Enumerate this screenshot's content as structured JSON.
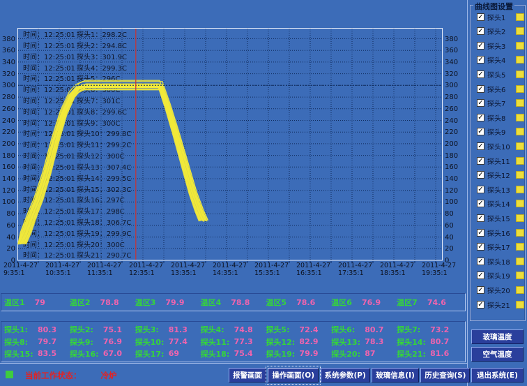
{
  "window": {
    "bg_color": "#3c6cb8",
    "curve_color": "#f2e93a",
    "grid_color": "#0f2a5a",
    "cursor_color": "#c83232",
    "zone_label_color": "#35d53a",
    "value_color": "#ef64ae"
  },
  "chart": {
    "y_ticks": [
      380,
      360,
      340,
      320,
      300,
      280,
      260,
      240,
      220,
      200,
      180,
      160,
      140,
      120,
      100,
      80,
      60,
      40,
      20,
      0
    ],
    "x_date": "2011-4-27",
    "x_times": [
      "9:35:1",
      "10:35:1",
      "11:35:1",
      "12:35:1",
      "13:35:1",
      "14:35:1",
      "15:35:1",
      "16:35:1",
      "17:35:1",
      "18:35:1",
      "19:35:1"
    ],
    "overlay_time": "时间：12:25:01"
  },
  "chart_data": {
    "type": "line",
    "title": "",
    "xlabel": "",
    "ylabel": "",
    "ylim": [
      0,
      400
    ],
    "y_tick_step": 20,
    "x_axis_date": "2011-4-27",
    "x_axis_times": [
      "9:35:1",
      "10:35:1",
      "11:35:1",
      "12:35:1",
      "13:35:1",
      "14:35:1",
      "15:35:1",
      "16:35:1",
      "17:35:1",
      "18:35:1",
      "19:35:1"
    ],
    "grid": "dotted",
    "cursor": {
      "time": "12:25:01",
      "hours_from_axis_start": 2.83
    },
    "series_color": "#f2e93a",
    "base_curve_hours_temp": [
      [
        0.07,
        28
      ],
      [
        0.2,
        48
      ],
      [
        0.35,
        78
      ],
      [
        0.5,
        105
      ],
      [
        0.7,
        150
      ],
      [
        0.9,
        205
      ],
      [
        1.1,
        252
      ],
      [
        1.3,
        283
      ],
      [
        1.45,
        295
      ],
      [
        1.6,
        300
      ],
      [
        3.42,
        300
      ],
      [
        3.6,
        262
      ],
      [
        3.8,
        215
      ],
      [
        4.0,
        165
      ],
      [
        4.2,
        115
      ],
      [
        4.35,
        85
      ],
      [
        4.45,
        68
      ]
    ],
    "series": [
      {
        "name": "探头1",
        "at_cursor": "298.2C",
        "now": "80.3"
      },
      {
        "name": "探头2",
        "at_cursor": "294.8C",
        "now": "75.1"
      },
      {
        "name": "探头3",
        "at_cursor": "301.9C",
        "now": "81.3"
      },
      {
        "name": "探头4",
        "at_cursor": "299.3C",
        "now": "74.8"
      },
      {
        "name": "探头5",
        "at_cursor": "296C",
        "now": "72.4"
      },
      {
        "name": "探头6",
        "at_cursor": "300C",
        "now": "80.7"
      },
      {
        "name": "探头7",
        "at_cursor": "301C",
        "now": "73.2"
      },
      {
        "name": "探头8",
        "at_cursor": "299.6C",
        "now": "79.7"
      },
      {
        "name": "探头9",
        "at_cursor": "300C",
        "now": "76.9"
      },
      {
        "name": "探头10",
        "at_cursor": "299.8C",
        "now": "77.4"
      },
      {
        "name": "探头11",
        "at_cursor": "299.2C",
        "now": "77.3"
      },
      {
        "name": "探头12",
        "at_cursor": "300C",
        "now": "82.9"
      },
      {
        "name": "探头13",
        "at_cursor": "307.4C",
        "now": "78.3"
      },
      {
        "name": "探头14",
        "at_cursor": "299.5C",
        "now": "80.7"
      },
      {
        "name": "探头15",
        "at_cursor": "302.3C",
        "now": "83.5"
      },
      {
        "name": "探头16",
        "at_cursor": "297C",
        "now": "67.0"
      },
      {
        "name": "探头17",
        "at_cursor": "298C",
        "now": "69"
      },
      {
        "name": "探头18",
        "at_cursor": "306.7C",
        "now": "75.4"
      },
      {
        "name": "探头19",
        "at_cursor": "299.9C",
        "now": "79.9"
      },
      {
        "name": "探头20",
        "at_cursor": "300C",
        "now": "87"
      },
      {
        "name": "探头21",
        "at_cursor": "290.7C",
        "now": "81.6"
      }
    ]
  },
  "sidebar": {
    "title": "曲线图设置",
    "checkbox_checked": true,
    "check_glyph": "✓",
    "swatch_color": "#ecdf3c",
    "glass_btn": "玻璃温度",
    "air_btn": "空气温度"
  },
  "zones": [
    {
      "label": "温区1",
      "value": "79"
    },
    {
      "label": "温区2",
      "value": "78.8"
    },
    {
      "label": "温区3",
      "value": "79.9"
    },
    {
      "label": "温区4",
      "value": "78.8"
    },
    {
      "label": "温区5",
      "value": "78.6"
    },
    {
      "label": "温区6",
      "value": "76.9"
    },
    {
      "label": "温区7",
      "value": "74.6"
    }
  ],
  "buttons": {
    "alarm": "报警画面",
    "operate": "操作画面(O)",
    "params": "系统参数(P)",
    "glass_info": "玻璃信息(I)",
    "history": "历史查询(S)",
    "exit": "退出系统(E)"
  },
  "status": {
    "label": "当前工作状态：",
    "value": "冷炉"
  }
}
